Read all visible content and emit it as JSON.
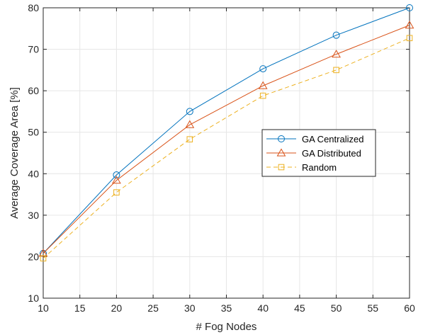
{
  "chart_data": {
    "type": "line",
    "title": "",
    "xlabel": "# Fog Nodes",
    "ylabel": "Average Coverage Area [%]",
    "xlim": [
      10,
      60
    ],
    "ylim": [
      10,
      80
    ],
    "xticks": [
      10,
      15,
      20,
      25,
      30,
      35,
      40,
      45,
      50,
      55,
      60
    ],
    "yticks": [
      10,
      20,
      30,
      40,
      50,
      60,
      70,
      80
    ],
    "grid": true,
    "legend_position": "center-right",
    "x": [
      10,
      20,
      30,
      40,
      50,
      60
    ],
    "series": [
      {
        "name": "GA Centralized",
        "values": [
          20.8,
          39.7,
          55.0,
          65.3,
          73.4,
          80.0
        ],
        "color": "#0072BD",
        "marker": "circle",
        "line": "solid"
      },
      {
        "name": "GA Distributed",
        "values": [
          20.8,
          38.4,
          51.8,
          61.2,
          68.8,
          75.8
        ],
        "color": "#D95319",
        "marker": "triangle",
        "line": "solid"
      },
      {
        "name": "Random",
        "values": [
          19.6,
          35.5,
          48.3,
          58.8,
          65.0,
          72.7
        ],
        "color": "#EDB120",
        "marker": "square",
        "line": "dashed"
      }
    ]
  }
}
